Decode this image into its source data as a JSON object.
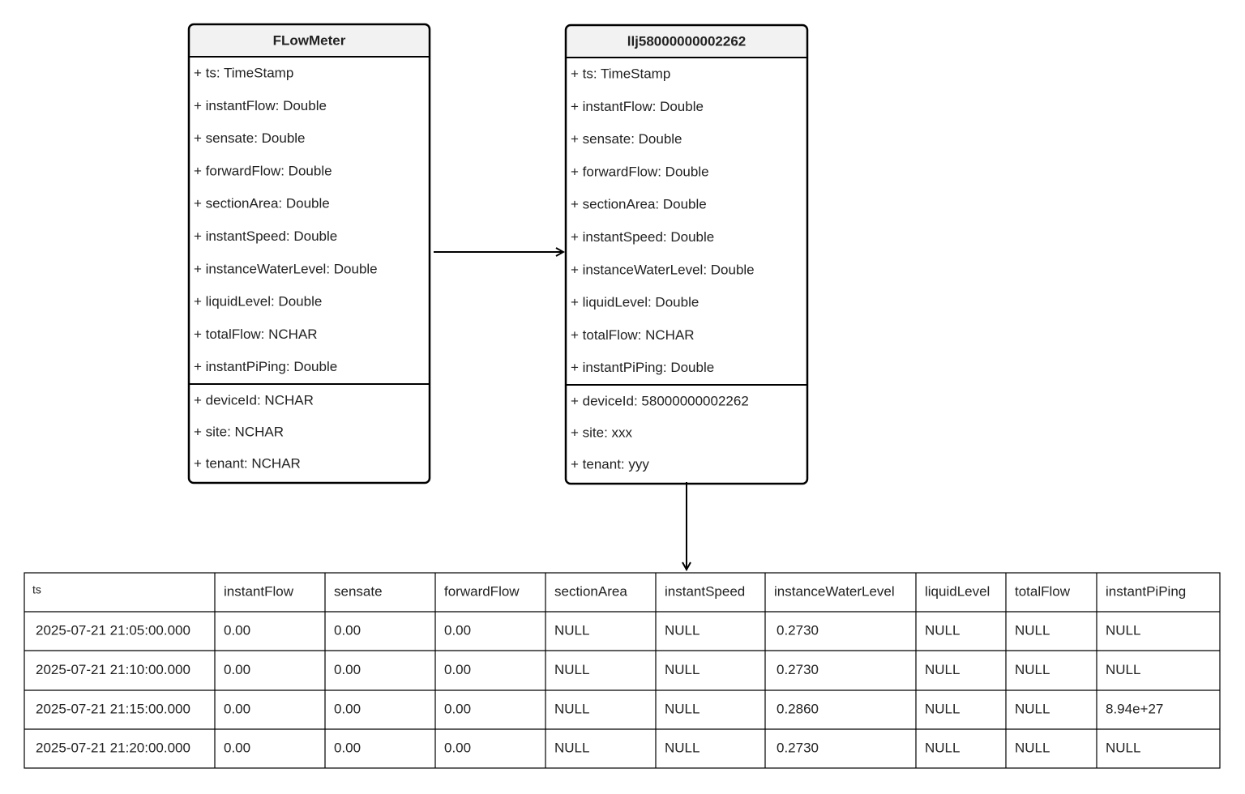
{
  "classes": [
    {
      "title": "FLowMeter",
      "fields": [
        "+ ts: TimeStamp",
        "+ instantFlow: Double",
        "+ sensate: Double",
        "+ forwardFlow: Double",
        "+ sectionArea: Double",
        "+ instantSpeed: Double",
        "+ instanceWaterLevel: Double",
        "+ liquidLevel: Double",
        "+ totalFlow: NCHAR",
        "+ instantPiPing: Double"
      ],
      "tags": [
        "+ deviceId: NCHAR",
        "+ site: NCHAR",
        "+ tenant: NCHAR"
      ]
    },
    {
      "title": "llj58000000002262",
      "fields": [
        "+ ts: TimeStamp",
        "+ instantFlow: Double",
        "+ sensate: Double",
        "+ forwardFlow: Double",
        "+ sectionArea: Double",
        "+ instantSpeed: Double",
        "+ instanceWaterLevel: Double",
        "+ liquidLevel: Double",
        "+ totalFlow: NCHAR",
        "+ instantPiPing: Double"
      ],
      "tags": [
        "+ deviceId: 58000000002262",
        "+ site: xxx",
        "+ tenant: yyy"
      ]
    }
  ],
  "table": {
    "header": [
      "ts",
      "instantFlow",
      "sensate",
      "forwardFlow",
      "sectionArea",
      "instantSpeed",
      "instanceWaterLevel",
      "liquidLevel",
      "totalFlow",
      "instantPiPing"
    ],
    "rows": [
      [
        "2025-07-21 21:05:00.000",
        "0.00",
        "0.00",
        "0.00",
        "NULL",
        "NULL",
        "0.2730",
        "NULL",
        "NULL",
        "NULL"
      ],
      [
        "2025-07-21 21:10:00.000",
        "0.00",
        "0.00",
        "0.00",
        "NULL",
        "NULL",
        "0.2730",
        "NULL",
        "NULL",
        "NULL"
      ],
      [
        "2025-07-21 21:15:00.000",
        "0.00",
        "0.00",
        "0.00",
        "NULL",
        "NULL",
        "0.2860",
        "NULL",
        "NULL",
        "8.94e+27"
      ],
      [
        "2025-07-21 21:20:00.000",
        "0.00",
        "0.00",
        "0.00",
        "NULL",
        "NULL",
        "0.2730",
        "NULL",
        "NULL",
        "NULL"
      ]
    ]
  }
}
